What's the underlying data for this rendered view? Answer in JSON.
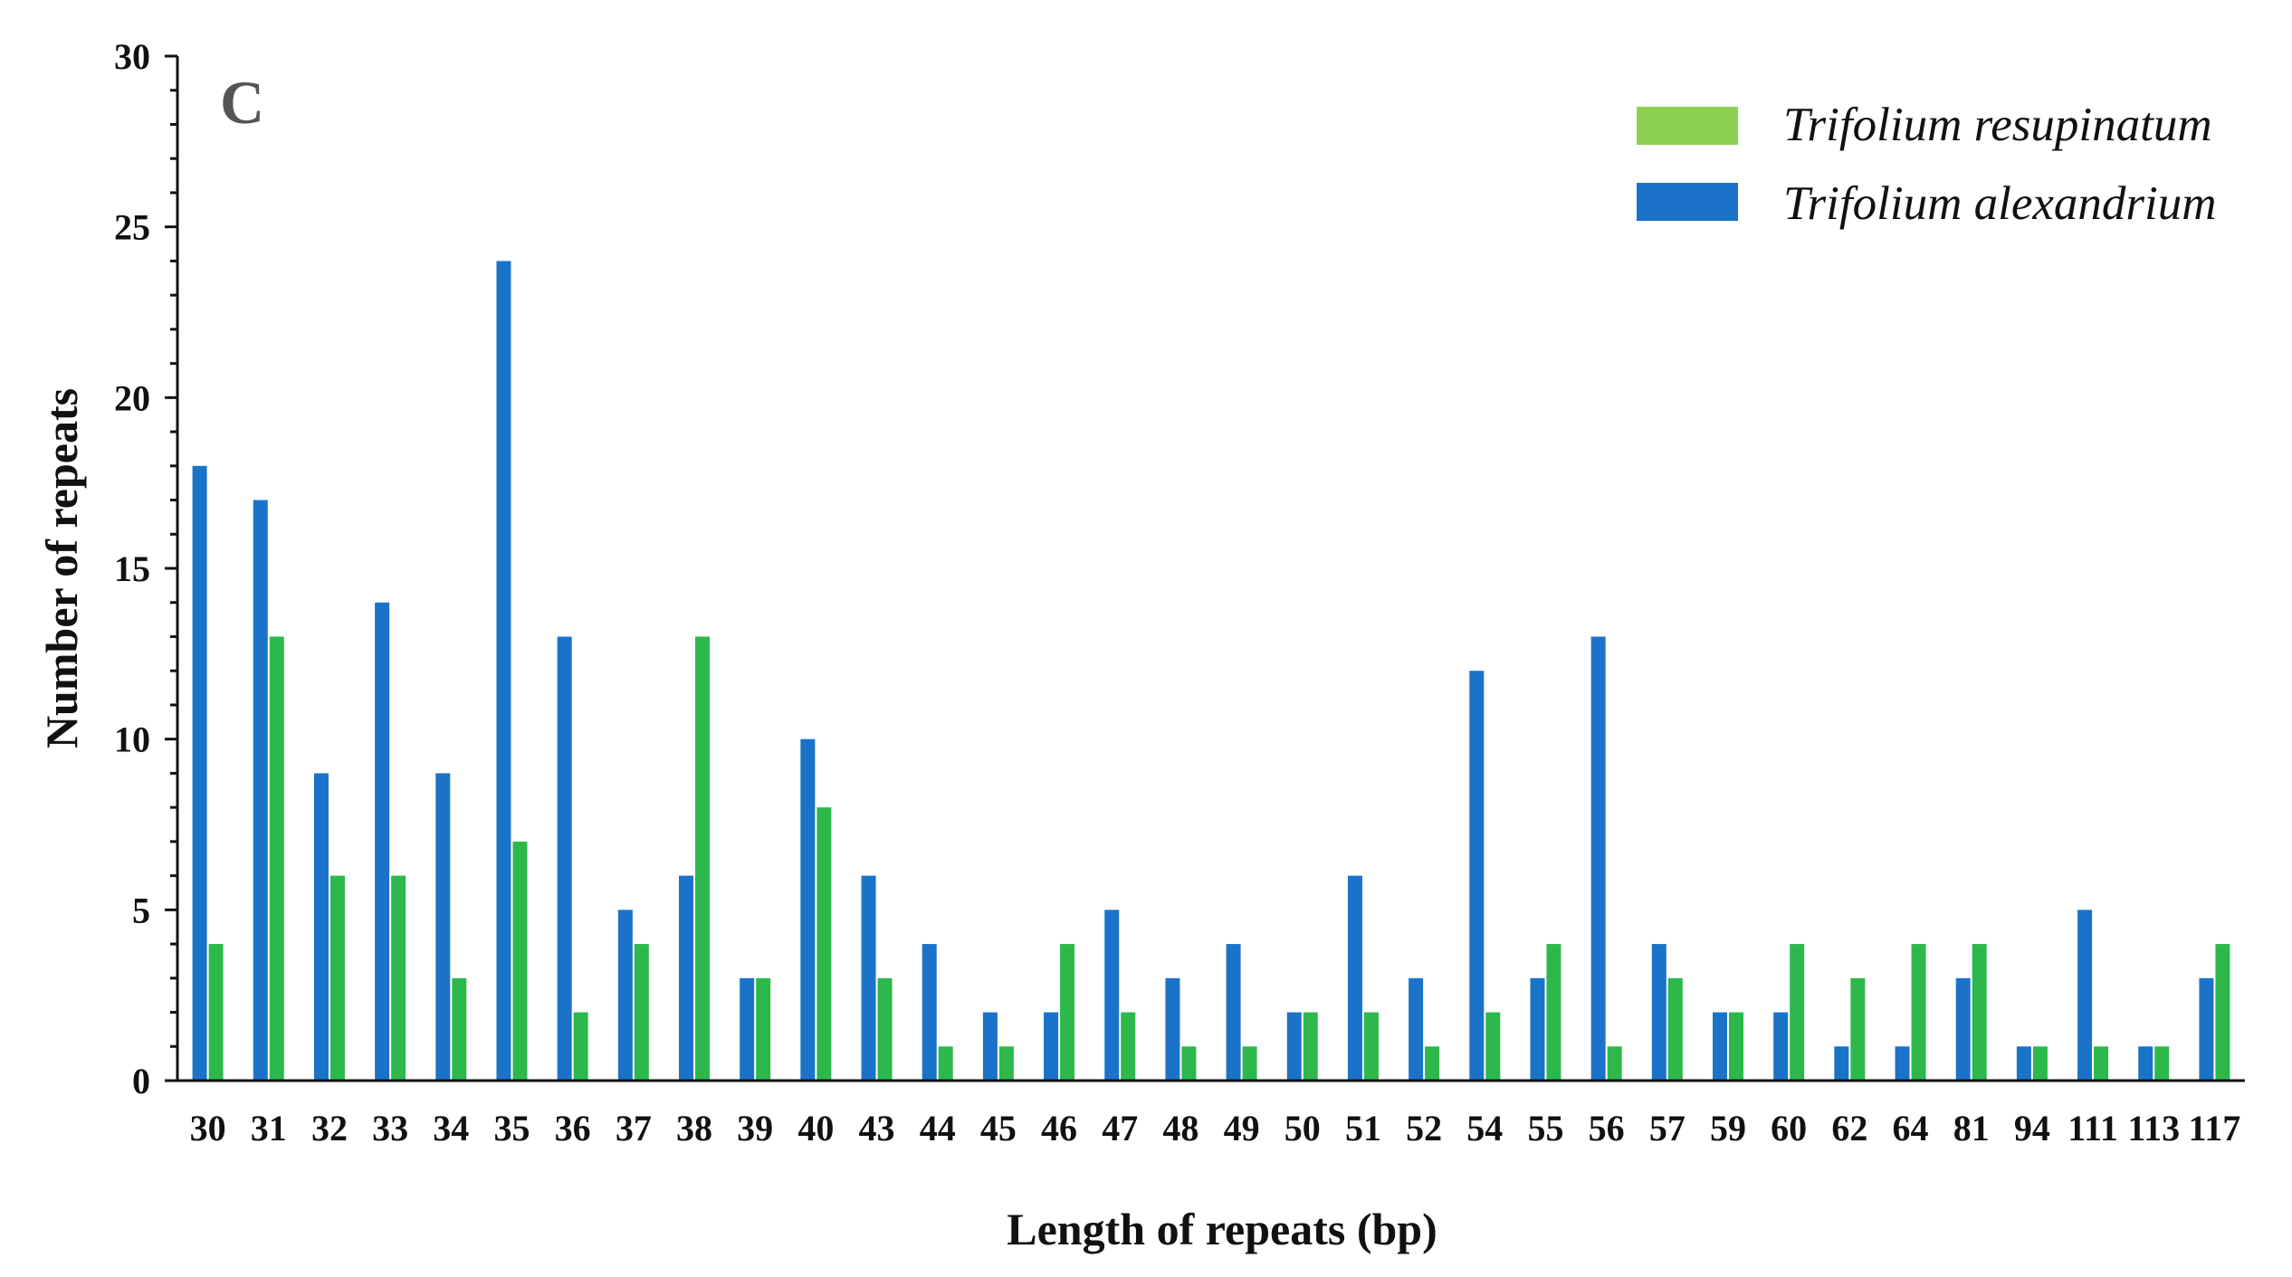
{
  "chart_data": {
    "type": "bar",
    "panel_label": "C",
    "xlabel": "Length of repeats (bp)",
    "ylabel": "Number of repeats",
    "ylim": [
      0,
      30
    ],
    "yticks": [
      0,
      5,
      10,
      15,
      20,
      25,
      30
    ],
    "grid": false,
    "legend_position": "top-right",
    "categories": [
      "30",
      "31",
      "32",
      "33",
      "34",
      "35",
      "36",
      "37",
      "38",
      "39",
      "40",
      "43",
      "44",
      "45",
      "46",
      "47",
      "48",
      "49",
      "50",
      "51",
      "52",
      "54",
      "55",
      "56",
      "57",
      "59",
      "60",
      "62",
      "64",
      "81",
      "94",
      "111",
      "113",
      "117"
    ],
    "series": [
      {
        "name": "Trifolium alexandrium",
        "color": "#1a73c9",
        "values": [
          18,
          17,
          9,
          14,
          9,
          24,
          13,
          5,
          6,
          3,
          10,
          6,
          4,
          2,
          2,
          5,
          3,
          4,
          2,
          6,
          3,
          12,
          3,
          13,
          4,
          2,
          2,
          1,
          1,
          3,
          1,
          5,
          1,
          3
        ]
      },
      {
        "name": "Trifolium resupinatum",
        "color": "#2db84b",
        "values": [
          4,
          13,
          6,
          6,
          3,
          7,
          2,
          4,
          13,
          3,
          8,
          3,
          1,
          1,
          4,
          2,
          1,
          1,
          2,
          2,
          1,
          2,
          4,
          1,
          3,
          2,
          4,
          3,
          4,
          4,
          1,
          1,
          1,
          4
        ]
      }
    ],
    "legend": [
      {
        "name": "Trifolium resupinatum",
        "color": "#8ed152"
      },
      {
        "name": "Trifolium alexandrium",
        "color": "#1a73c9"
      }
    ]
  }
}
